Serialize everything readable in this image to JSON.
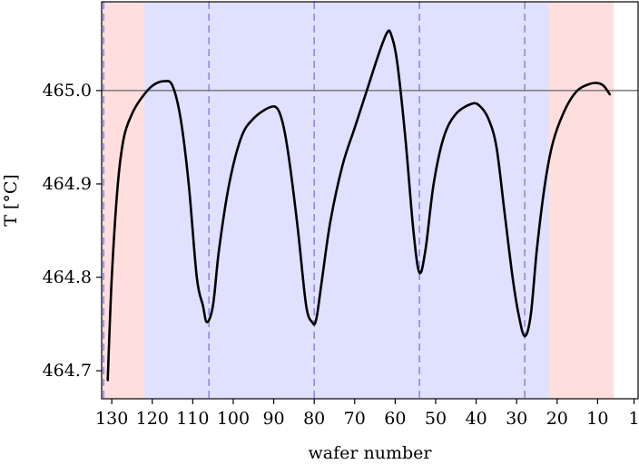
{
  "chart_data": {
    "type": "line",
    "title": "",
    "xlabel": "wafer number",
    "ylabel": "T [°C]",
    "x_reversed": true,
    "xlim": [
      132.5,
      0
    ],
    "ylim": [
      464.67,
      465.095
    ],
    "xticks": [
      130,
      120,
      110,
      100,
      90,
      80,
      70,
      60,
      50,
      40,
      30,
      20,
      10,
      1
    ],
    "yticks": [
      464.7,
      464.8,
      464.9,
      465.0
    ],
    "ytick_labels": [
      "464.7",
      "464.8",
      "464.9",
      "465.0"
    ],
    "grid": false,
    "reference_line": {
      "y": 465.0,
      "color": "#7a7a7a"
    },
    "regions": [
      {
        "from": 132.5,
        "to": 122,
        "color": "#ffdede"
      },
      {
        "from": 122,
        "to": 22,
        "color": "#e0e0ff"
      },
      {
        "from": 22,
        "to": 6,
        "color": "#ffdede"
      }
    ],
    "vertical_markers": {
      "x": [
        132,
        106,
        80,
        54,
        28
      ],
      "color": "#8a8ae8",
      "style": "dashed"
    },
    "series": [
      {
        "color": "#000000",
        "points": [
          [
            131.0,
            464.69
          ],
          [
            130.0,
            464.8
          ],
          [
            128.5,
            464.9
          ],
          [
            127.0,
            464.95
          ],
          [
            125.0,
            464.975
          ],
          [
            123.0,
            464.99
          ],
          [
            120.0,
            465.005
          ],
          [
            117.0,
            465.01
          ],
          [
            115.0,
            465.005
          ],
          [
            113.0,
            464.97
          ],
          [
            111.0,
            464.9
          ],
          [
            109.0,
            464.8
          ],
          [
            107.5,
            464.77
          ],
          [
            106.5,
            464.752
          ],
          [
            105.0,
            464.77
          ],
          [
            103.5,
            464.83
          ],
          [
            101.0,
            464.9
          ],
          [
            98.0,
            464.95
          ],
          [
            95.0,
            464.97
          ],
          [
            91.0,
            464.982
          ],
          [
            89.0,
            464.98
          ],
          [
            87.5,
            464.96
          ],
          [
            86.0,
            464.92
          ],
          [
            84.0,
            464.85
          ],
          [
            82.0,
            464.77
          ],
          [
            80.5,
            464.752
          ],
          [
            79.5,
            464.755
          ],
          [
            78.0,
            464.8
          ],
          [
            76.0,
            464.86
          ],
          [
            73.0,
            464.92
          ],
          [
            70.0,
            464.96
          ],
          [
            67.0,
            465.0
          ],
          [
            64.0,
            465.04
          ],
          [
            62.0,
            465.062
          ],
          [
            61.0,
            465.06
          ],
          [
            59.5,
            465.03
          ],
          [
            57.5,
            464.95
          ],
          [
            55.5,
            464.85
          ],
          [
            54.0,
            464.805
          ],
          [
            52.5,
            464.83
          ],
          [
            50.5,
            464.9
          ],
          [
            48.0,
            464.95
          ],
          [
            45.0,
            464.975
          ],
          [
            41.0,
            464.986
          ],
          [
            39.0,
            464.983
          ],
          [
            37.0,
            464.97
          ],
          [
            35.0,
            464.94
          ],
          [
            33.0,
            464.87
          ],
          [
            31.0,
            464.8
          ],
          [
            29.5,
            464.76
          ],
          [
            28.0,
            464.737
          ],
          [
            26.5,
            464.76
          ],
          [
            25.0,
            464.83
          ],
          [
            23.0,
            464.9
          ],
          [
            21.0,
            464.945
          ],
          [
            18.0,
            464.98
          ],
          [
            15.0,
            465.0
          ],
          [
            12.0,
            465.007
          ],
          [
            10.0,
            465.008
          ],
          [
            8.5,
            465.005
          ],
          [
            7.0,
            464.996
          ]
        ]
      }
    ]
  }
}
